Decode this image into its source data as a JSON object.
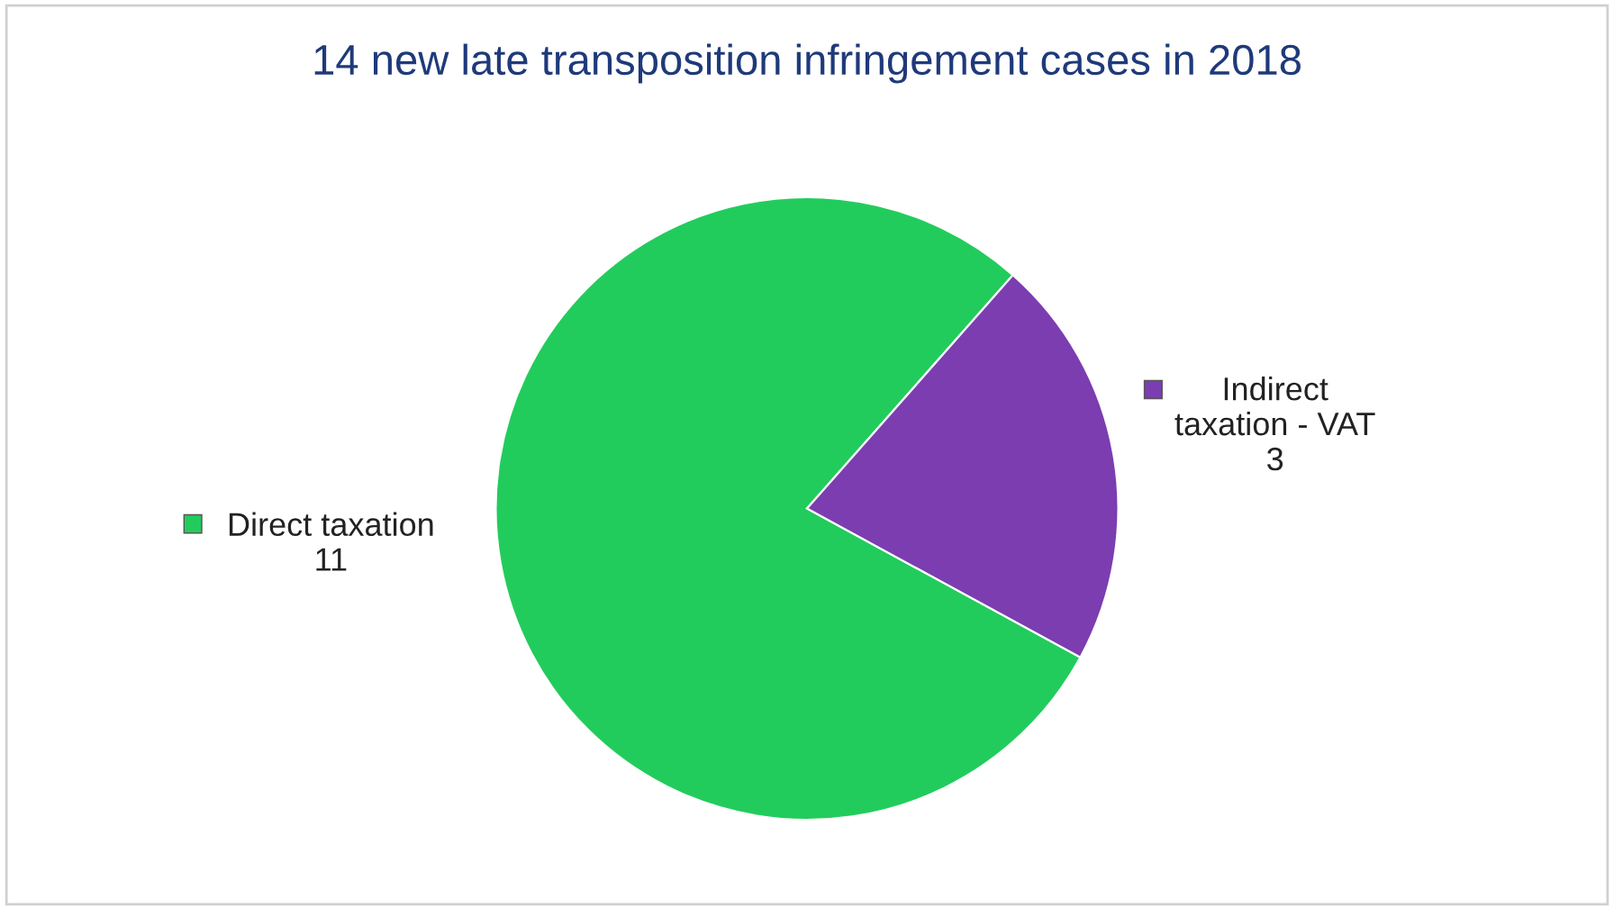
{
  "chart_data": {
    "type": "pie",
    "title": "14 new late transposition infringement cases in 2018",
    "categories": [
      "Direct taxation",
      "Indirect taxation - VAT"
    ],
    "values": [
      11,
      3
    ],
    "colors": [
      "#22cc5c",
      "#7b3db0"
    ],
    "data_labels": true,
    "legend": "right"
  }
}
